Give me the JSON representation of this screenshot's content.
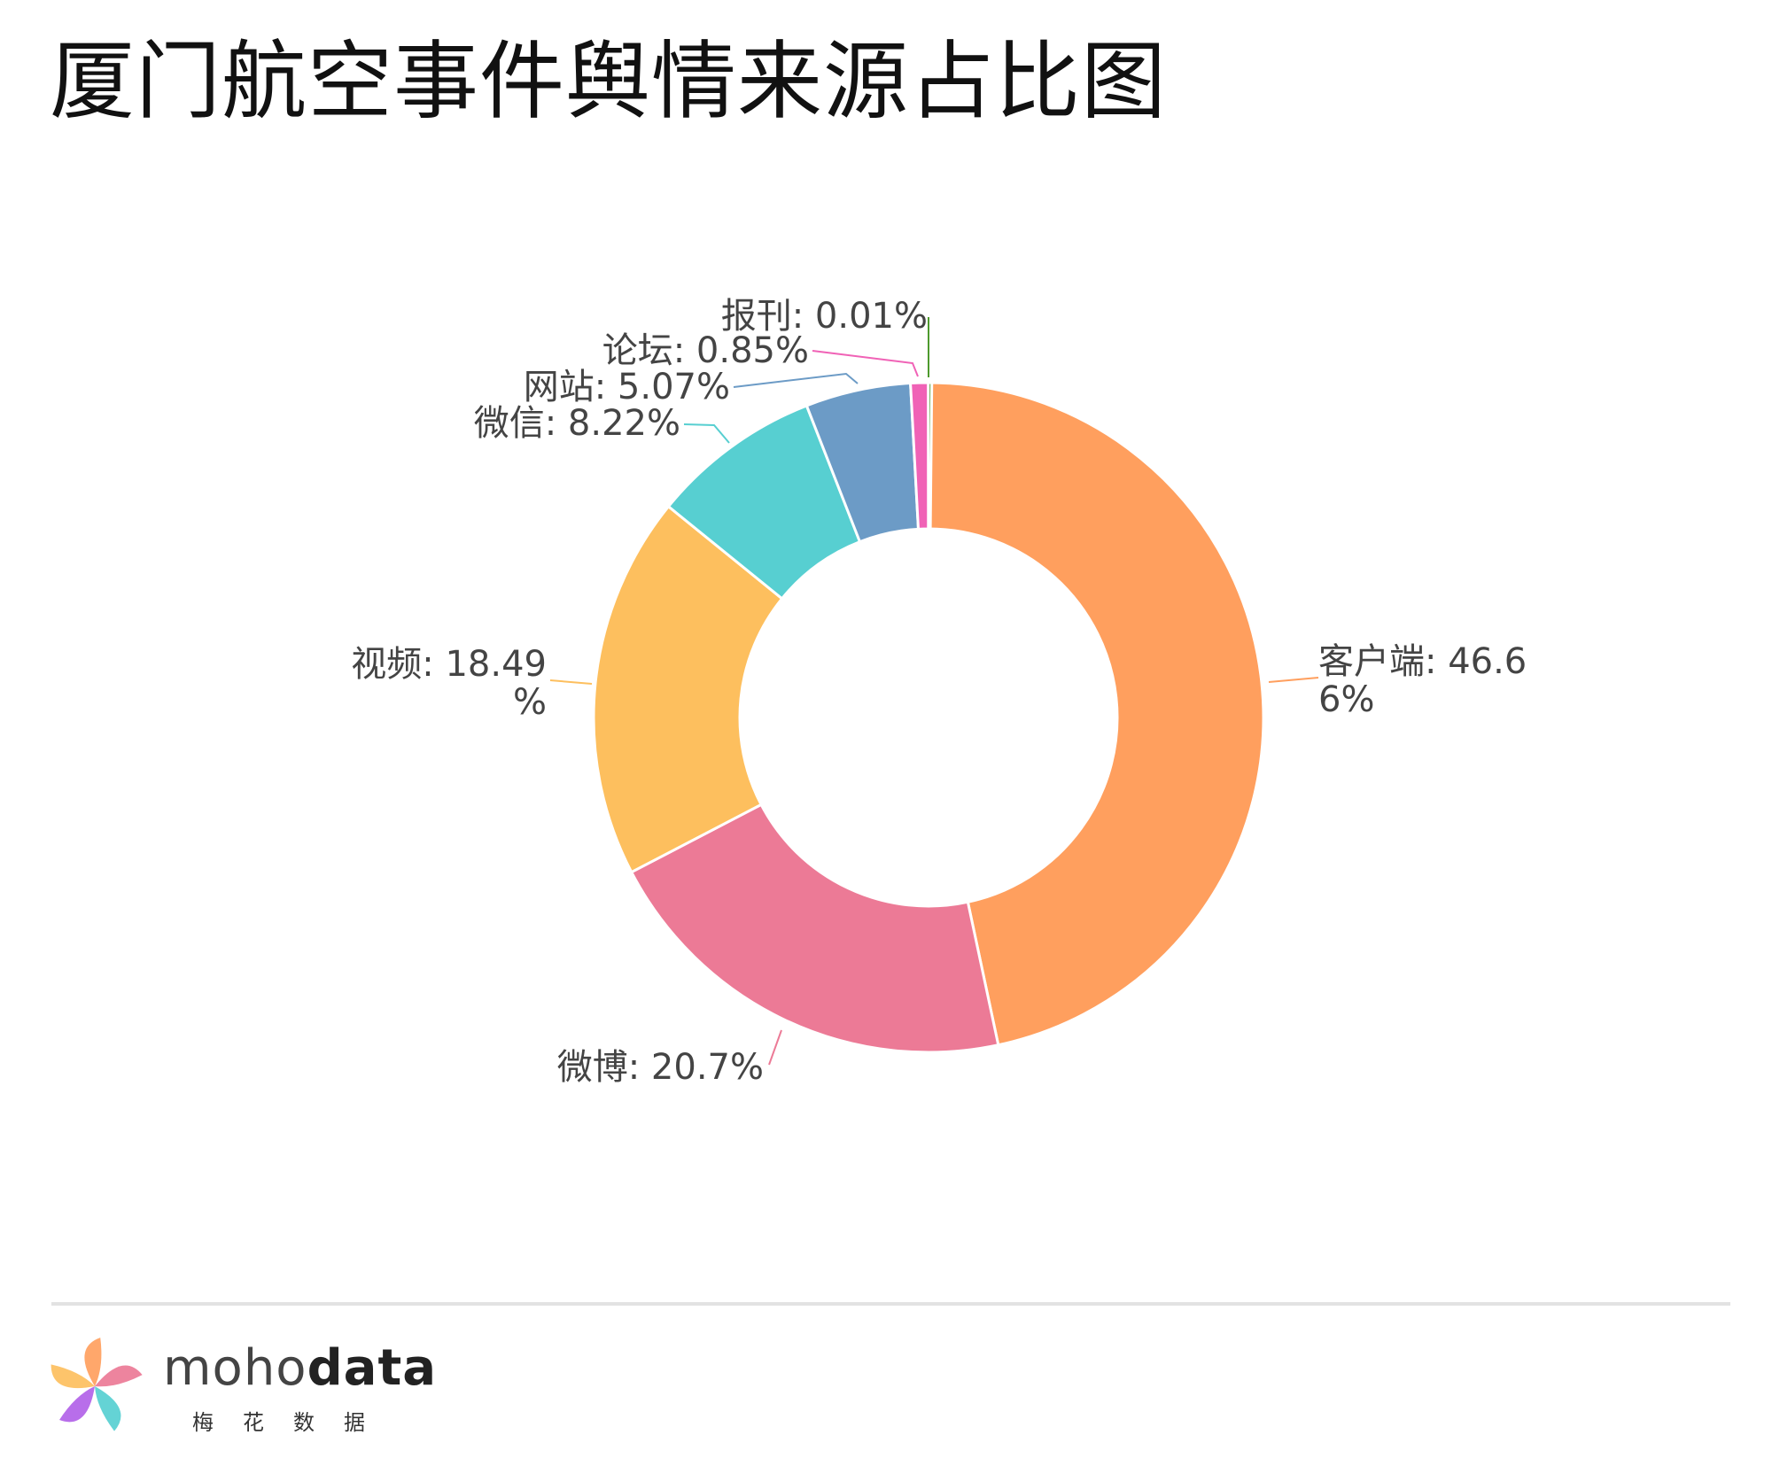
{
  "page": {
    "title": "厦门航空事件舆情来源占比图"
  },
  "chart_data": {
    "type": "pie",
    "style": "donut",
    "slices": [
      {
        "name": "客户端",
        "value": 46.66,
        "label": "客户端: 46.66%",
        "color": "#FF9F5E"
      },
      {
        "name": "微博",
        "value": 20.7,
        "label": "微博: 20.7%",
        "color": "#EC7A96"
      },
      {
        "name": "视频",
        "value": 18.49,
        "label": "视频: 18.49%",
        "color": "#FDBF5E"
      },
      {
        "name": "微信",
        "value": 8.22,
        "label": "微信: 8.22%",
        "color": "#57CFD1"
      },
      {
        "name": "网站",
        "value": 5.07,
        "label": "网站: 5.07%",
        "color": "#6C9BC6"
      },
      {
        "name": "论坛",
        "value": 0.85,
        "label": "论坛: 0.85%",
        "color": "#F062B6"
      },
      {
        "name": "报刊",
        "value": 0.01,
        "label": "报刊: 0.01%",
        "color": "#4E9A2D"
      }
    ],
    "legend": "none"
  },
  "brand": {
    "wordmark_light": "moho",
    "wordmark_bold": "data",
    "tagline": "梅花数据",
    "logo_icon": "pinwheel-logo-icon",
    "logo_colors": [
      "#FF9F5E",
      "#EC7A96",
      "#57CFD1",
      "#B262E8",
      "#FDBF5E"
    ]
  }
}
